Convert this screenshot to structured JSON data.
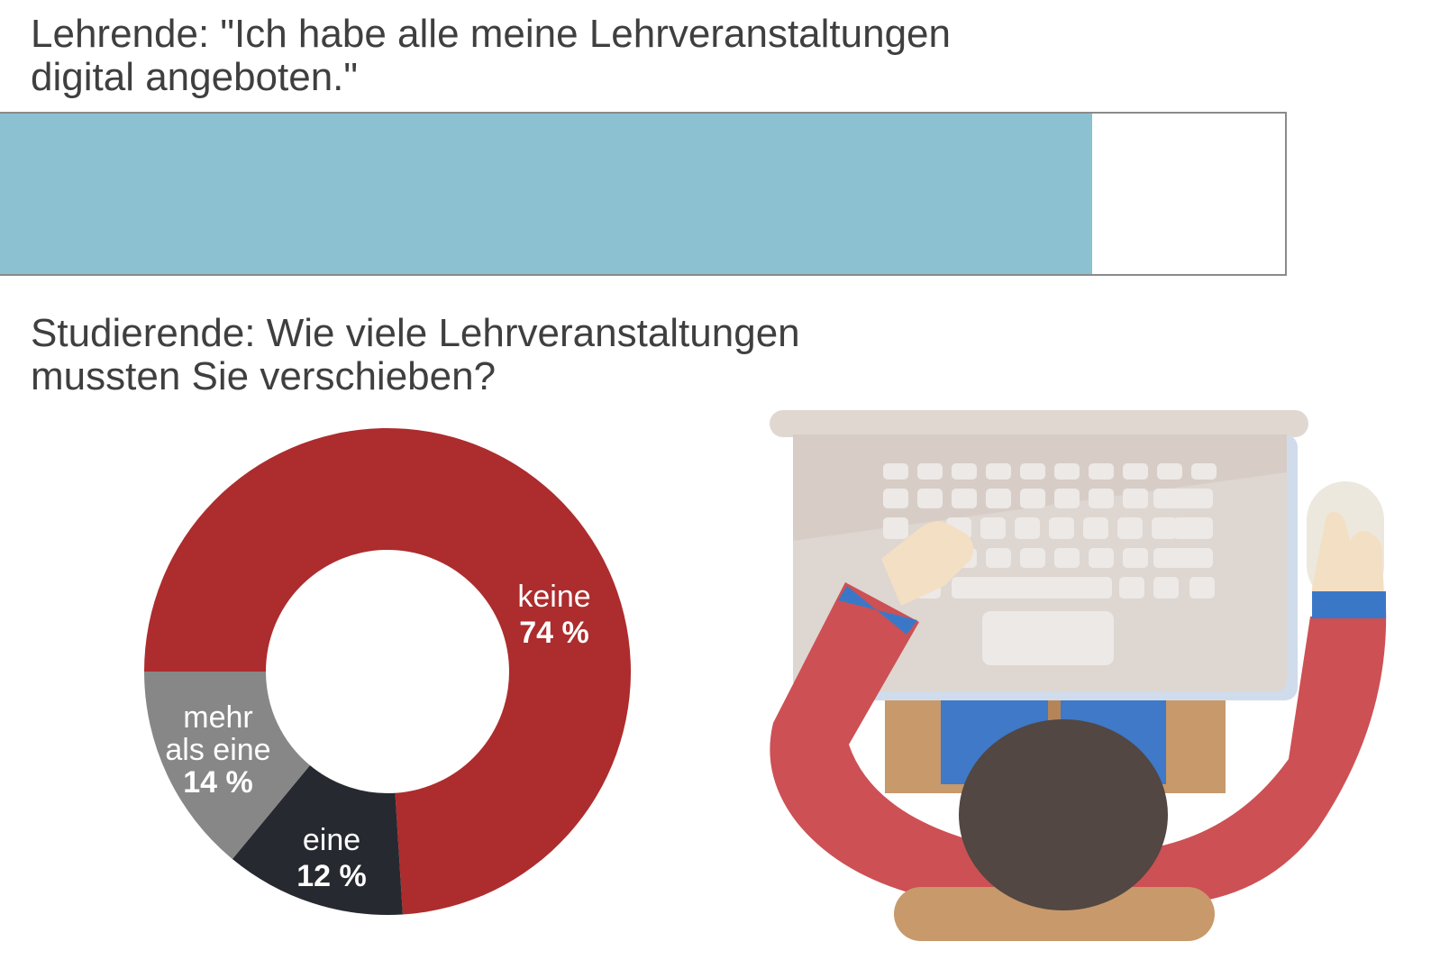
{
  "title1": {
    "line1": "Lehrende: \"Ich habe alle meine Lehrveranstaltungen",
    "line2": "digital angeboten.\""
  },
  "title2": {
    "line1": "Studierende: Wie viele Lehrveranstaltungen",
    "line2": "mussten Sie verschieben?"
  },
  "chart_data": [
    {
      "type": "bar",
      "categories": [
        "Lehrende"
      ],
      "values": [
        85
      ],
      "value_label": "85 %",
      "ylim": [
        0,
        100
      ],
      "colors": {
        "fill": "#8bc1d1",
        "track": "#ffffff",
        "border": "#8a8a8a"
      }
    },
    {
      "type": "pie",
      "donut": true,
      "slices": [
        {
          "name": "keine",
          "value": 74,
          "label": "74 %",
          "color": "#ad2c2d",
          "label_lines": [
            "keine"
          ]
        },
        {
          "name": "eine",
          "value": 12,
          "label": "12 %",
          "color": "#262a30",
          "label_lines": [
            "eine"
          ]
        },
        {
          "name": "mehr als eine",
          "value": 14,
          "label": "14 %",
          "color": "#878787",
          "label_lines": [
            "mehr",
            "als eine"
          ]
        }
      ]
    }
  ],
  "illustration": {
    "name": "student-at-laptop-illustration"
  }
}
